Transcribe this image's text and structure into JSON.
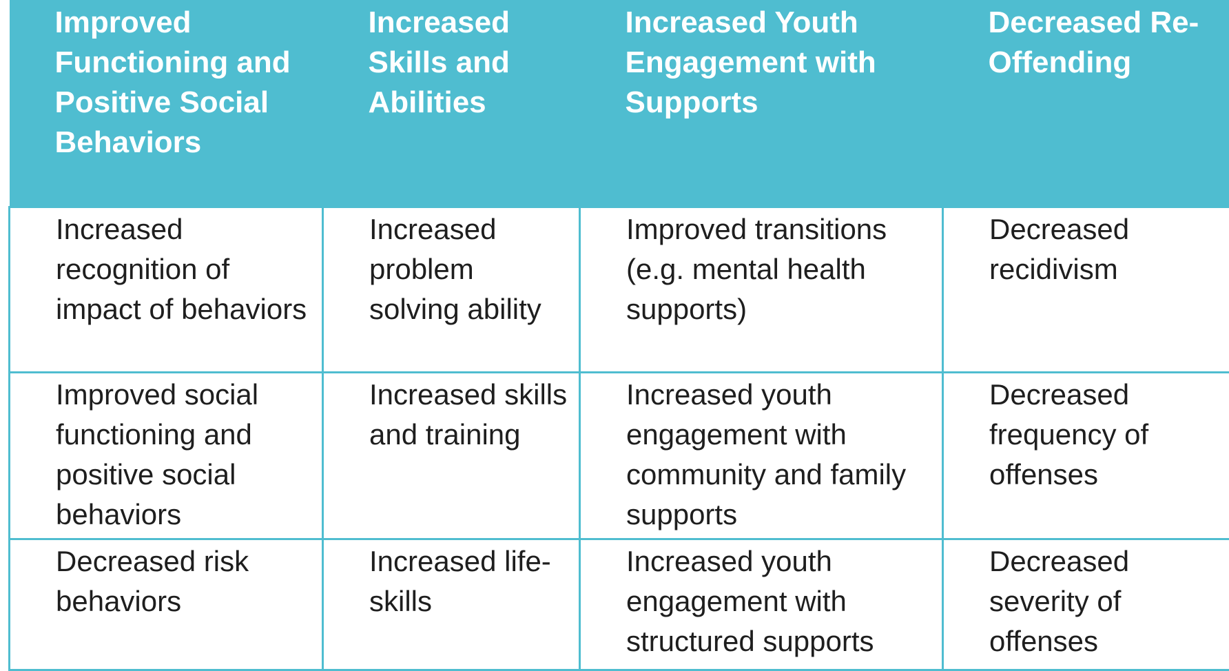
{
  "headers": [
    "Improved Functioning and Positive Social Behaviors",
    "Increased Skills and Abilities",
    "Increased Youth Engagement with Supports",
    "Decreased Re-Offending"
  ],
  "rows": [
    [
      "Increased recognition of impact of behaviors",
      "Increased problem solving ability",
      "Improved transitions (e.g. mental health supports)",
      "Decreased recidivism"
    ],
    [
      "Improved social functioning and positive social behaviors",
      "Increased skills and training",
      "Increased youth engagement with community and family supports",
      "Decreased frequency of offenses"
    ],
    [
      "Decreased risk behaviors",
      "Increased life-skills",
      "Increased youth engagement with structured supports",
      "Decreased severity of offenses"
    ]
  ],
  "colors": {
    "header_bg": "#4fbdd0",
    "header_text": "#ffffff",
    "border": "#4fbdd0",
    "body_text": "#1e1e1e"
  }
}
